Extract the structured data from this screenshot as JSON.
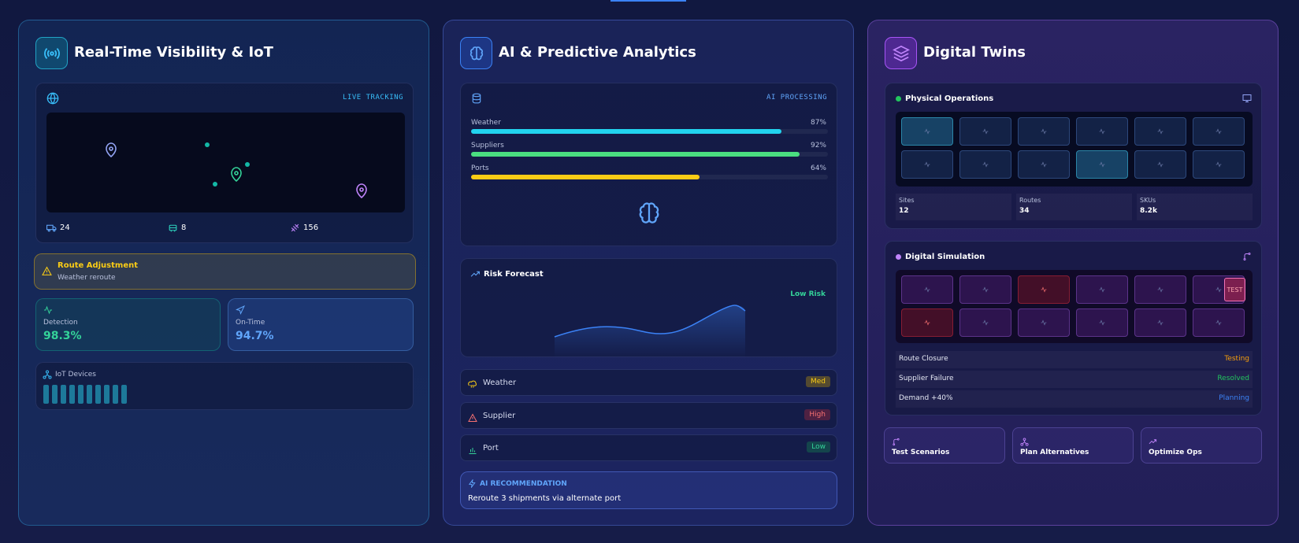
{
  "visibility": {
    "title": "Real-Time Visibility & IoT",
    "map_label": "LIVE TRACKING",
    "stats": [
      24,
      8,
      156
    ],
    "alert": {
      "title": "Route Adjustment",
      "text": "Weather reroute"
    },
    "metrics": [
      {
        "label": "Detection",
        "value": "98.3%"
      },
      {
        "label": "On-Time",
        "value": "94.7%"
      }
    ],
    "iot_label": "IoT Devices"
  },
  "analytics": {
    "title": "AI & Predictive Analytics",
    "status": "AI PROCESSING",
    "factors": [
      {
        "name": "Weather",
        "value": 87,
        "label": "87%"
      },
      {
        "name": "Suppliers",
        "value": 92,
        "label": "92%"
      },
      {
        "name": "Ports",
        "value": 64,
        "label": "64%"
      }
    ],
    "forecast": {
      "title": "Risk Forecast",
      "level": "Low Risk"
    },
    "risks": [
      {
        "name": "Weather",
        "level": "Med"
      },
      {
        "name": "Supplier",
        "level": "High"
      },
      {
        "name": "Port",
        "level": "Low"
      }
    ],
    "recommendation": {
      "title": "AI RECOMMENDATION",
      "text": "Reroute 3 shipments via alternate port"
    }
  },
  "twins": {
    "title": "Digital Twins",
    "physical": {
      "title": "Physical Operations",
      "stats": [
        {
          "label": "Sites",
          "value": 12
        },
        {
          "label": "Routes",
          "value": 34
        },
        {
          "label": "SKUs",
          "value": "8.2k"
        }
      ]
    },
    "simulation": {
      "title": "Digital Simulation",
      "badge": "TEST",
      "scenarios": [
        {
          "name": "Route Closure",
          "status": "Testing"
        },
        {
          "name": "Supplier Failure",
          "status": "Resolved"
        },
        {
          "name": "Demand +40%",
          "status": "Planning"
        }
      ]
    },
    "actions": [
      "Test Scenarios",
      "Plan Alternatives",
      "Optimize Ops"
    ]
  }
}
